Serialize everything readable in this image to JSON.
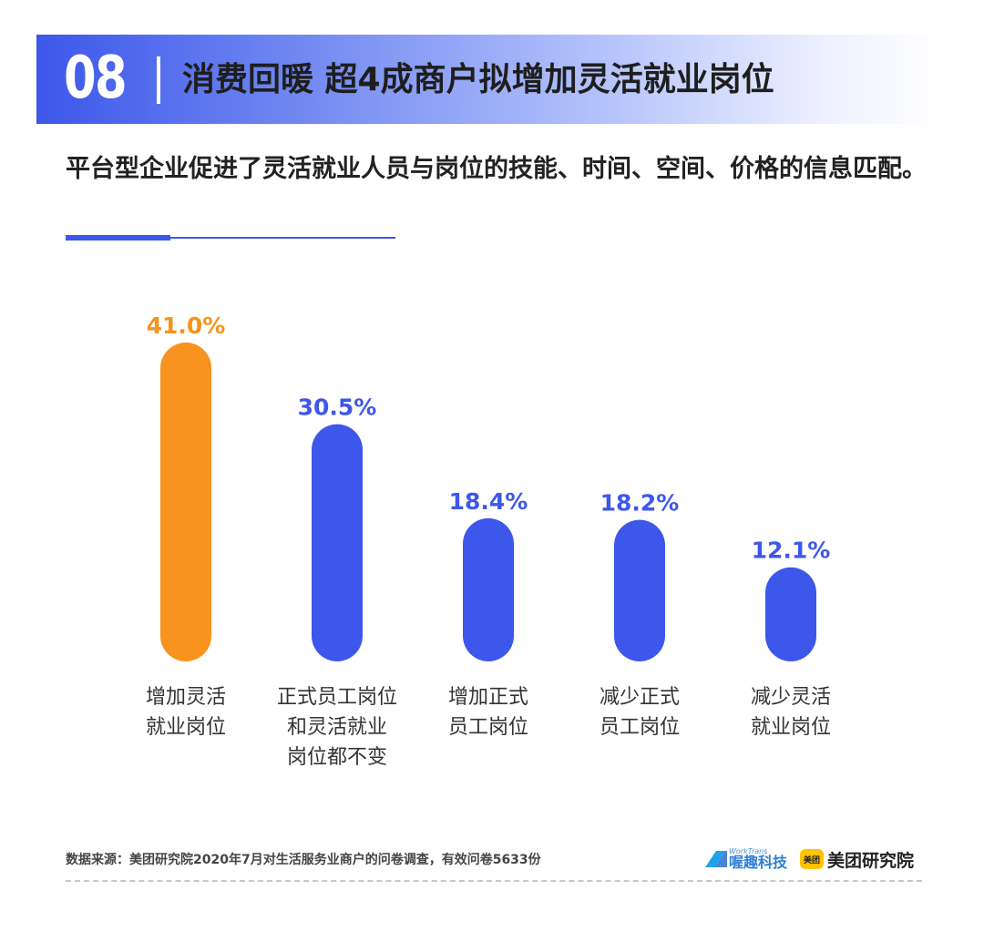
{
  "header": {
    "section_number": "08",
    "title": "消费回暖 超4成商户拟增加灵活就业岗位"
  },
  "subtitle": "平台型企业促进了灵活就业人员与岗位的技能、时间、空间、价格的信息匹配。",
  "colors": {
    "highlight": "#f7931e",
    "primary": "#3d57ea",
    "header_gradient_start": "#3d57ea"
  },
  "chart_data": {
    "type": "bar",
    "title": "",
    "xlabel": "",
    "ylabel": "",
    "ylim": [
      0,
      41.0
    ],
    "grid": false,
    "categories": [
      [
        "增加灵活",
        "就业岗位"
      ],
      [
        "正式员工岗位",
        "和灵活就业",
        "岗位都不变"
      ],
      [
        "增加正式",
        "员工岗位"
      ],
      [
        "减少正式",
        "员工岗位"
      ],
      [
        "减少灵活",
        "就业岗位"
      ]
    ],
    "values": [
      41.0,
      30.5,
      18.4,
      18.2,
      12.1
    ],
    "value_labels": [
      "41.0%",
      "30.5%",
      "18.4%",
      "18.2%",
      "12.1%"
    ],
    "bar_colors": [
      "#f7931e",
      "#3d57ea",
      "#3d57ea",
      "#3d57ea",
      "#3d57ea"
    ]
  },
  "footer": {
    "source": "数据来源：美团研究院2020年7月对生活服务业商户的问卷调查，有效问卷5633份",
    "logo_worktrans_small": "WorkTrans",
    "logo_worktrans_name": "喔趣科技",
    "logo_meituan_mark": "美团",
    "logo_meituan_name": "美团研究院"
  }
}
